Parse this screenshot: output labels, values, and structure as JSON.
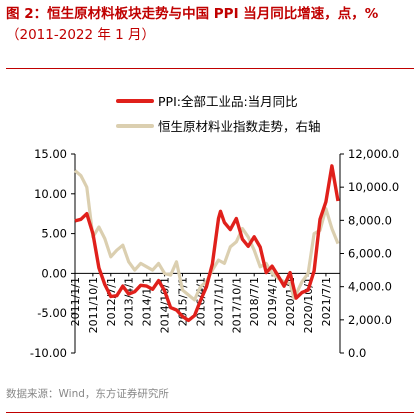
{
  "title": {
    "line1": "图 2：恒生原材料板块走势与中国 PPI 当月同比增速，点，%",
    "line2": "（2011-2022 年 1 月）"
  },
  "source": "数据来源：Wind，东方证券研究所",
  "colors": {
    "ppi": "#e0201b",
    "index": "#dbcfb0",
    "title": "#c00000"
  },
  "chart_data": {
    "type": "line",
    "legend_position": "top",
    "grid": false,
    "x_tick_labels": [
      "2011/1/1",
      "2011/10/1",
      "2012/7/1",
      "2013/4/1",
      "2014/1/1",
      "2014/10/1",
      "2015/7/1",
      "2016/4/1",
      "2017/1/1",
      "2017/10/1",
      "2018/7/1",
      "2019/4/1",
      "2020/1/1",
      "2020/10/1",
      "2021/7/1"
    ],
    "y_left": {
      "ticks": [
        "15.00",
        "10.00",
        "5.00",
        "0.00",
        "-5.00",
        "-10.00"
      ],
      "lim": [
        -10,
        15
      ]
    },
    "y_right": {
      "ticks": [
        "12,000.0",
        "10,000.0",
        "8,000.0",
        "6,000.0",
        "4,000.0",
        "2,000.0",
        "0.0"
      ],
      "lim": [
        0,
        12000
      ]
    },
    "series": [
      {
        "name": "PPI:全部工业品:当月同比",
        "axis": "left",
        "x": [
          "2011-01",
          "2011-04",
          "2011-07",
          "2011-10",
          "2012-01",
          "2012-04",
          "2012-07",
          "2012-10",
          "2013-01",
          "2013-04",
          "2013-07",
          "2013-10",
          "2014-01",
          "2014-04",
          "2014-07",
          "2014-10",
          "2015-01",
          "2015-04",
          "2015-07",
          "2015-10",
          "2016-01",
          "2016-04",
          "2016-07",
          "2016-10",
          "2017-01",
          "2017-02",
          "2017-04",
          "2017-07",
          "2017-10",
          "2018-01",
          "2018-04",
          "2018-07",
          "2018-10",
          "2019-01",
          "2019-04",
          "2019-07",
          "2019-10",
          "2020-01",
          "2020-04",
          "2020-07",
          "2020-10",
          "2021-01",
          "2021-04",
          "2021-07",
          "2021-10",
          "2022-01"
        ],
        "values": [
          6.6,
          6.8,
          7.5,
          5.0,
          0.7,
          -1.4,
          -2.9,
          -2.8,
          -1.6,
          -2.6,
          -2.3,
          -1.5,
          -1.6,
          -2.0,
          -0.9,
          -2.2,
          -4.3,
          -4.6,
          -5.4,
          -5.9,
          -5.3,
          -3.4,
          -1.7,
          1.2,
          6.9,
          7.8,
          6.4,
          5.5,
          6.9,
          4.3,
          3.4,
          4.6,
          3.3,
          0.1,
          0.9,
          -0.3,
          -1.6,
          0.1,
          -3.1,
          -2.4,
          -2.1,
          0.3,
          6.8,
          9.0,
          13.5,
          9.1
        ]
      },
      {
        "name": "恒生原材料业指数走势，右轴",
        "axis": "right",
        "x": [
          "2011-01",
          "2011-04",
          "2011-07",
          "2011-10",
          "2012-01",
          "2012-04",
          "2012-07",
          "2012-10",
          "2013-01",
          "2013-04",
          "2013-07",
          "2013-10",
          "2014-01",
          "2014-04",
          "2014-07",
          "2014-10",
          "2015-01",
          "2015-04",
          "2015-07",
          "2015-10",
          "2016-01",
          "2016-04",
          "2016-07",
          "2016-10",
          "2017-01",
          "2017-04",
          "2017-07",
          "2017-10",
          "2018-01",
          "2018-04",
          "2018-07",
          "2018-10",
          "2019-01",
          "2019-04",
          "2019-07",
          "2019-10",
          "2020-01",
          "2020-03",
          "2020-07",
          "2020-10",
          "2021-01",
          "2021-04",
          "2021-07",
          "2021-10",
          "2022-01"
        ],
        "values": [
          11000,
          10700,
          10000,
          7000,
          7600,
          6900,
          5800,
          6200,
          6500,
          5500,
          5000,
          5400,
          5200,
          5000,
          5400,
          4800,
          4700,
          5500,
          3800,
          3500,
          3200,
          4000,
          4300,
          5000,
          5600,
          5400,
          6400,
          6700,
          7500,
          7000,
          6200,
          5200,
          5400,
          4800,
          4500,
          4300,
          4200,
          3300,
          4300,
          4800,
          7200,
          7400,
          8700,
          7500,
          6600
        ]
      }
    ]
  }
}
